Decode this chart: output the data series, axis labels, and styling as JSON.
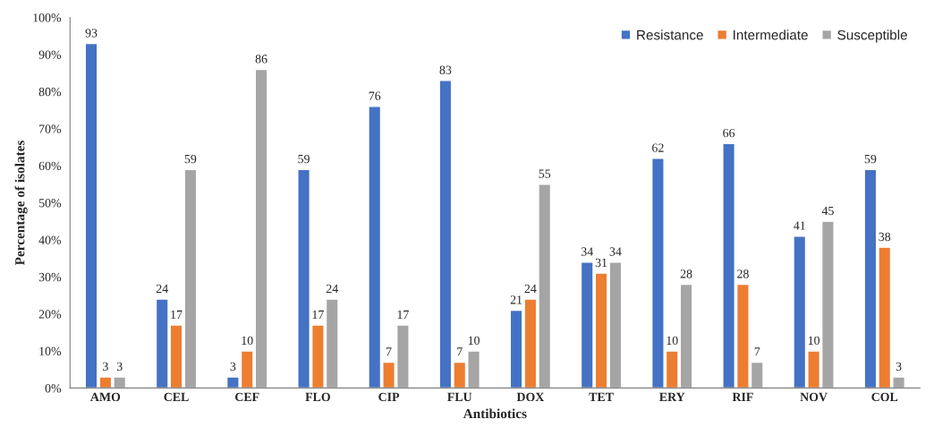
{
  "chart_data": {
    "type": "bar",
    "xlabel": "Antibiotics",
    "ylabel": "Percentage of isolates",
    "categories": [
      "AMO",
      "CEL",
      "CEF",
      "FLO",
      "CIP",
      "FLU",
      "DOX",
      "TET",
      "ERY",
      "RIF",
      "NOV",
      "COL"
    ],
    "series": [
      {
        "name": "Resistance",
        "color": "#4472c4",
        "values": [
          93,
          24,
          3,
          59,
          76,
          83,
          21,
          34,
          62,
          66,
          41,
          59
        ]
      },
      {
        "name": "Intermediate",
        "color": "#ed7d31",
        "values": [
          3,
          17,
          10,
          17,
          7,
          7,
          24,
          31,
          10,
          28,
          10,
          38
        ]
      },
      {
        "name": "Susceptible",
        "color": "#a5a5a5",
        "values": [
          3,
          59,
          86,
          24,
          17,
          10,
          55,
          34,
          28,
          7,
          45,
          3
        ]
      }
    ],
    "ylim": [
      0,
      100
    ],
    "yticks": [
      {
        "value": 0,
        "label": "0%"
      },
      {
        "value": 10,
        "label": "10%"
      },
      {
        "value": 20,
        "label": "20%"
      },
      {
        "value": 30,
        "label": "30%"
      },
      {
        "value": 40,
        "label": "40%"
      },
      {
        "value": 50,
        "label": "50%"
      },
      {
        "value": 60,
        "label": "60%"
      },
      {
        "value": 70,
        "label": "70%"
      },
      {
        "value": 80,
        "label": "80%"
      },
      {
        "value": 90,
        "label": "90%"
      },
      {
        "value": 100,
        "label": "100%"
      }
    ],
    "data_labels": true,
    "legend": "top right",
    "grid": false
  }
}
